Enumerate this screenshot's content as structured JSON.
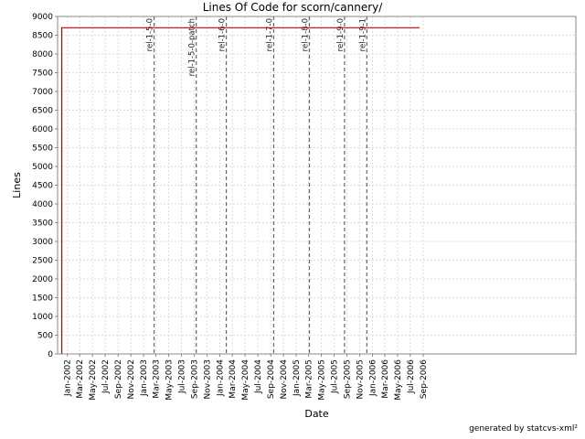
{
  "footer": {
    "generated_by": "generated by statcvs-xml²"
  },
  "chart_data": {
    "type": "line",
    "title": "Lines Of Code for scorn/cannery/",
    "xlabel": "Date",
    "ylabel": "Lines",
    "ylim": [
      0,
      9000
    ],
    "y_ticks": [
      0,
      500,
      1000,
      1500,
      2000,
      2500,
      3000,
      3500,
      4000,
      4500,
      5000,
      5500,
      6000,
      6500,
      7000,
      7500,
      8000,
      8500,
      9000
    ],
    "xlim": [
      "2001-11-15",
      "2008-09-01"
    ],
    "x_ticks": [
      {
        "date": "2002-01-01",
        "label": "Jan-2002"
      },
      {
        "date": "2002-03-01",
        "label": "Mar-2002"
      },
      {
        "date": "2002-05-01",
        "label": "May-2002"
      },
      {
        "date": "2002-07-01",
        "label": "Jul-2002"
      },
      {
        "date": "2002-09-01",
        "label": "Sep-2002"
      },
      {
        "date": "2002-11-01",
        "label": "Nov-2002"
      },
      {
        "date": "2003-01-01",
        "label": "Jan-2003"
      },
      {
        "date": "2003-03-01",
        "label": "Mar-2003"
      },
      {
        "date": "2003-05-01",
        "label": "May-2003"
      },
      {
        "date": "2003-07-01",
        "label": "Jul-2003"
      },
      {
        "date": "2003-09-01",
        "label": "Sep-2003"
      },
      {
        "date": "2003-11-01",
        "label": "Nov-2003"
      },
      {
        "date": "2004-01-01",
        "label": "Jan-2004"
      },
      {
        "date": "2004-03-01",
        "label": "Mar-2004"
      },
      {
        "date": "2004-05-01",
        "label": "May-2004"
      },
      {
        "date": "2004-07-01",
        "label": "Jul-2004"
      },
      {
        "date": "2004-09-01",
        "label": "Sep-2004"
      },
      {
        "date": "2004-11-01",
        "label": "Nov-2004"
      },
      {
        "date": "2005-01-01",
        "label": "Jan-2005"
      },
      {
        "date": "2005-03-01",
        "label": "Mar-2005"
      },
      {
        "date": "2005-05-01",
        "label": "May-2005"
      },
      {
        "date": "2005-07-01",
        "label": "Jul-2005"
      },
      {
        "date": "2005-09-01",
        "label": "Sep-2005"
      },
      {
        "date": "2005-11-01",
        "label": "Nov-2005"
      },
      {
        "date": "2006-01-01",
        "label": "Jan-2006"
      },
      {
        "date": "2006-03-01",
        "label": "Mar-2006"
      },
      {
        "date": "2006-05-01",
        "label": "May-2006"
      },
      {
        "date": "2006-07-01",
        "label": "Jul-2006"
      },
      {
        "date": "2006-09-01",
        "label": "Sep-2006"
      }
    ],
    "grid": true,
    "series": [
      {
        "color": "#cc0000",
        "points": [
          {
            "x": "2001-12-05",
            "y": 0
          },
          {
            "x": "2001-12-05",
            "y": 8700
          },
          {
            "x": "2006-08-15",
            "y": 8700
          }
        ]
      }
    ],
    "markers": [
      {
        "date": "2003-02-20",
        "label": "rel-1-5-0"
      },
      {
        "date": "2003-09-10",
        "label": "rel-1-5-0-patch"
      },
      {
        "date": "2004-02-01",
        "label": "rel-1-6-0"
      },
      {
        "date": "2004-09-15",
        "label": "rel-1-7-0"
      },
      {
        "date": "2005-03-05",
        "label": "rel-1-8-0"
      },
      {
        "date": "2005-08-20",
        "label": "rel-1-9-0"
      },
      {
        "date": "2005-12-05",
        "label": "rel-1-9-1"
      }
    ]
  }
}
